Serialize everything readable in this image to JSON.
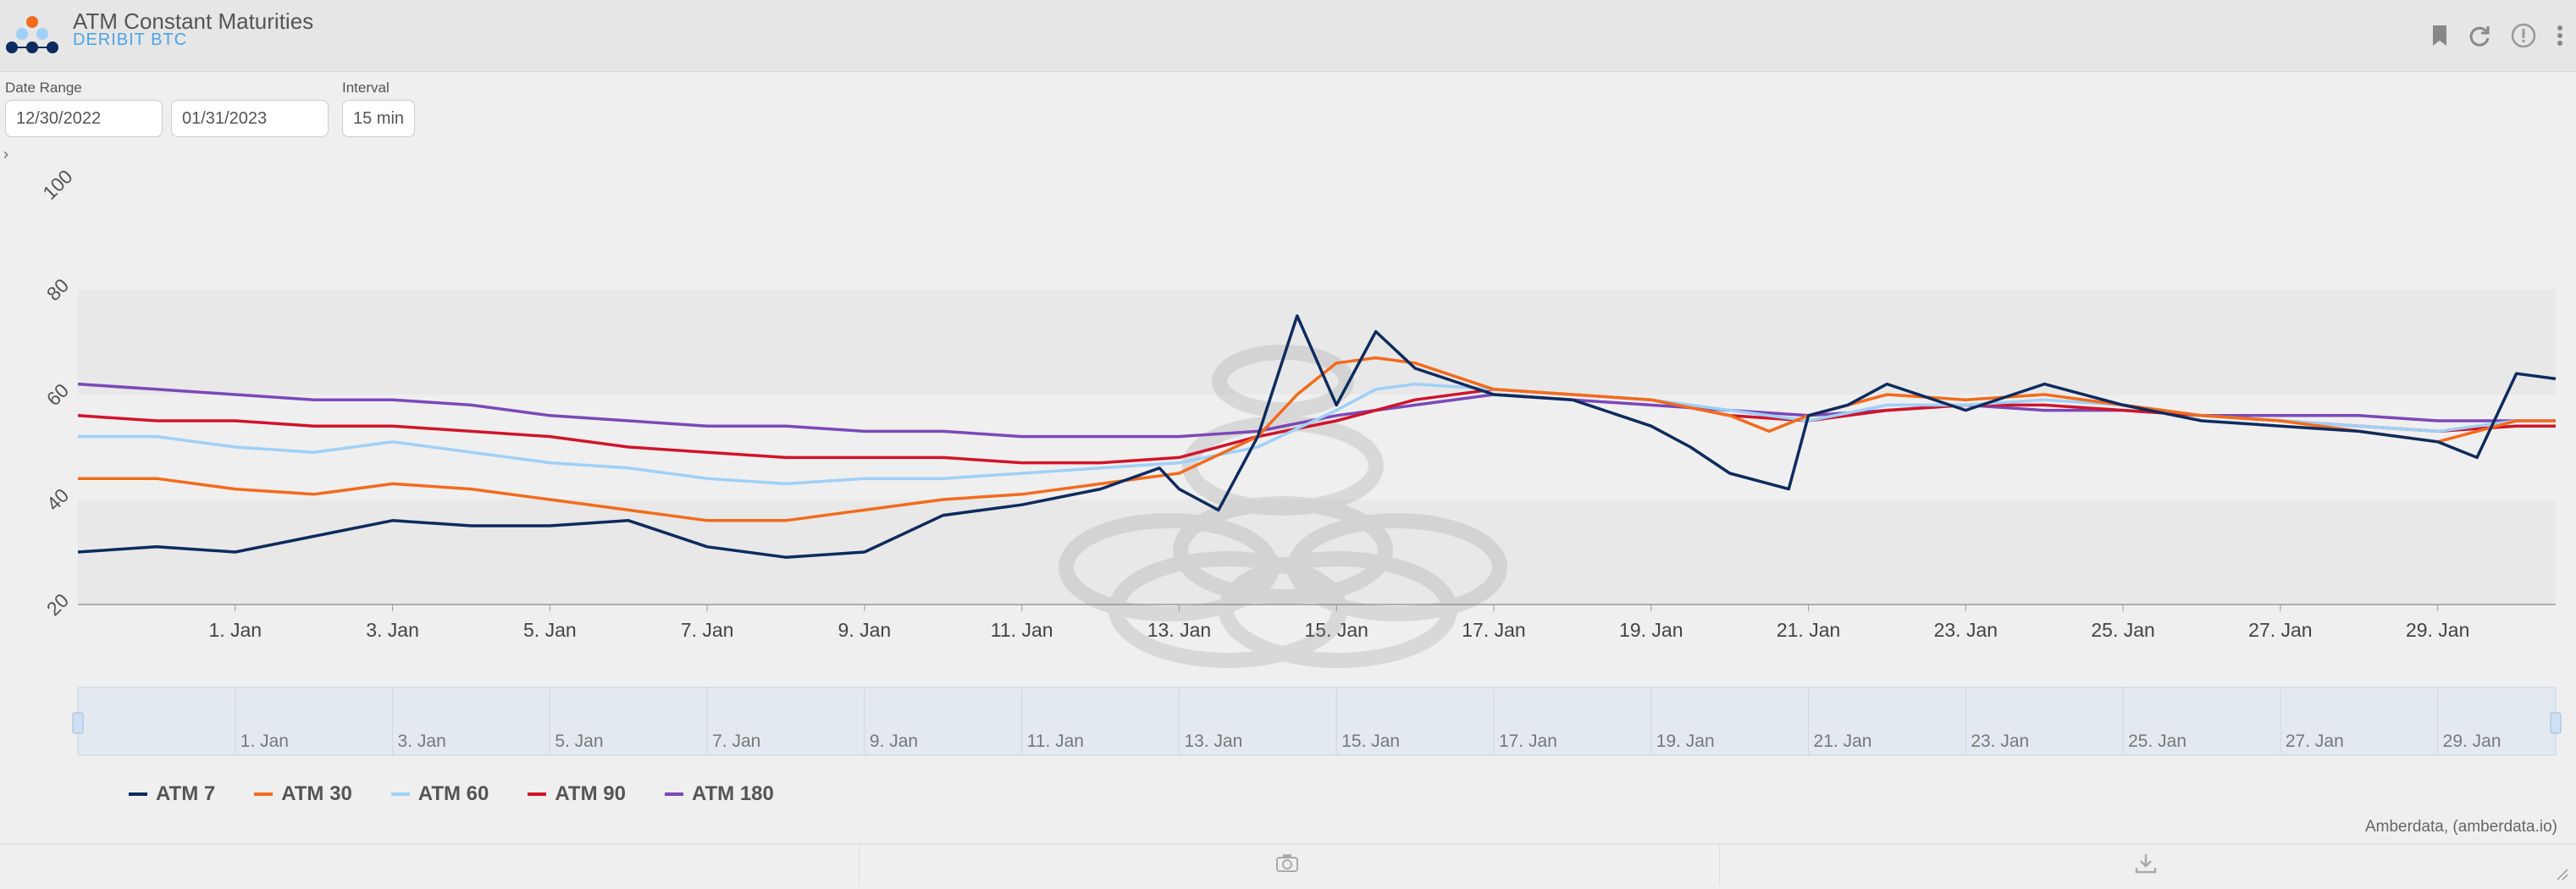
{
  "header": {
    "title": "ATM Constant Maturities",
    "subtitle": "DERIBIT BTC"
  },
  "controls": {
    "date_range_label": "Date Range",
    "start_date": "12/30/2022",
    "end_date": "01/31/2023",
    "interval_label": "Interval",
    "interval": "15 min"
  },
  "credit": "Amberdata, (amberdata.io)",
  "icons": [
    "bookmark-icon",
    "refresh-icon",
    "alert-icon",
    "more-icon",
    "camera-icon",
    "download-icon"
  ],
  "colors": {
    "atm7": "#0d2b5e",
    "atm30": "#f26b1d",
    "atm60": "#9fd0f7",
    "atm90": "#d0142b",
    "atm180": "#7b48b8"
  },
  "chart_data": {
    "type": "line",
    "title": "",
    "xlabel": "",
    "ylabel": "",
    "ylim": [
      20,
      100
    ],
    "yticks": [
      "20",
      "40",
      "60",
      "80",
      "100"
    ],
    "xlim": [
      "2022-12-30",
      "2023-01-30T12:00"
    ],
    "xticks": [
      "1. Jan",
      "3. Jan",
      "5. Jan",
      "7. Jan",
      "9. Jan",
      "11. Jan",
      "13. Jan",
      "15. Jan",
      "17. Jan",
      "19. Jan",
      "21. Jan",
      "23. Jan",
      "25. Jan",
      "27. Jan",
      "29. Jan"
    ],
    "navigator_ticks": [
      "1. Jan",
      "3. Jan",
      "5. Jan",
      "7. Jan",
      "9. Jan",
      "11. Jan",
      "13. Jan",
      "15. Jan",
      "17. Jan",
      "19. Jan",
      "21. Jan",
      "23. Jan",
      "25. Jan",
      "27. Jan",
      "29. Jan"
    ],
    "grid": "alternating horizontal bands",
    "legend": "bottom-left",
    "series": [
      {
        "name": "ATM 7",
        "color": "#0d2b5e",
        "x": [
          "2022-12-30",
          "2022-12-31",
          "2023-01-01",
          "2023-01-02",
          "2023-01-03",
          "2023-01-04",
          "2023-01-05",
          "2023-01-06",
          "2023-01-07",
          "2023-01-08",
          "2023-01-09",
          "2023-01-10",
          "2023-01-11",
          "2023-01-12",
          "2023-01-12T18:00",
          "2023-01-13",
          "2023-01-13T12:00",
          "2023-01-14",
          "2023-01-14T12:00",
          "2023-01-15",
          "2023-01-15T12:00",
          "2023-01-16",
          "2023-01-17",
          "2023-01-18",
          "2023-01-19",
          "2023-01-19T12:00",
          "2023-01-20",
          "2023-01-20T18:00",
          "2023-01-21",
          "2023-01-21T12:00",
          "2023-01-22",
          "2023-01-23",
          "2023-01-24",
          "2023-01-25",
          "2023-01-26",
          "2023-01-27",
          "2023-01-28",
          "2023-01-29",
          "2023-01-29T12:00",
          "2023-01-30",
          "2023-01-30T12:00"
        ],
        "values": [
          30,
          31,
          30,
          33,
          36,
          35,
          35,
          36,
          31,
          29,
          30,
          37,
          39,
          42,
          46,
          42,
          38,
          52,
          75,
          58,
          72,
          65,
          60,
          59,
          54,
          50,
          45,
          42,
          56,
          58,
          62,
          57,
          62,
          58,
          55,
          54,
          53,
          51,
          48,
          64,
          63
        ]
      },
      {
        "name": "ATM 30",
        "color": "#f26b1d",
        "x": [
          "2022-12-30",
          "2022-12-31",
          "2023-01-01",
          "2023-01-02",
          "2023-01-03",
          "2023-01-04",
          "2023-01-05",
          "2023-01-06",
          "2023-01-07",
          "2023-01-08",
          "2023-01-09",
          "2023-01-10",
          "2023-01-11",
          "2023-01-12",
          "2023-01-13",
          "2023-01-14",
          "2023-01-14T12:00",
          "2023-01-15",
          "2023-01-15T12:00",
          "2023-01-16",
          "2023-01-17",
          "2023-01-18",
          "2023-01-19",
          "2023-01-20",
          "2023-01-20T12:00",
          "2023-01-21",
          "2023-01-22",
          "2023-01-23",
          "2023-01-24",
          "2023-01-25",
          "2023-01-26",
          "2023-01-27",
          "2023-01-28",
          "2023-01-29",
          "2023-01-30",
          "2023-01-30T12:00"
        ],
        "values": [
          44,
          44,
          42,
          41,
          43,
          42,
          40,
          38,
          36,
          36,
          38,
          40,
          41,
          43,
          45,
          52,
          60,
          66,
          67,
          66,
          61,
          60,
          59,
          56,
          53,
          56,
          60,
          59,
          60,
          58,
          56,
          55,
          53,
          51,
          55,
          55
        ]
      },
      {
        "name": "ATM 60",
        "color": "#9fd0f7",
        "x": [
          "2022-12-30",
          "2022-12-31",
          "2023-01-01",
          "2023-01-02",
          "2023-01-03",
          "2023-01-04",
          "2023-01-05",
          "2023-01-06",
          "2023-01-07",
          "2023-01-08",
          "2023-01-09",
          "2023-01-10",
          "2023-01-11",
          "2023-01-12",
          "2023-01-13",
          "2023-01-14",
          "2023-01-15",
          "2023-01-15T12:00",
          "2023-01-16",
          "2023-01-17",
          "2023-01-18",
          "2023-01-19",
          "2023-01-20",
          "2023-01-21",
          "2023-01-22",
          "2023-01-23",
          "2023-01-24",
          "2023-01-25",
          "2023-01-26",
          "2023-01-27",
          "2023-01-28",
          "2023-01-29",
          "2023-01-30",
          "2023-01-30T12:00"
        ],
        "values": [
          52,
          52,
          50,
          49,
          51,
          49,
          47,
          46,
          44,
          43,
          44,
          44,
          45,
          46,
          47,
          50,
          57,
          61,
          62,
          61,
          60,
          59,
          57,
          55,
          58,
          58,
          59,
          58,
          56,
          55,
          54,
          53,
          55,
          55
        ]
      },
      {
        "name": "ATM 90",
        "color": "#d0142b",
        "x": [
          "2022-12-30",
          "2022-12-31",
          "2023-01-01",
          "2023-01-02",
          "2023-01-03",
          "2023-01-04",
          "2023-01-05",
          "2023-01-06",
          "2023-01-07",
          "2023-01-08",
          "2023-01-09",
          "2023-01-10",
          "2023-01-11",
          "2023-01-12",
          "2023-01-13",
          "2023-01-14",
          "2023-01-15",
          "2023-01-16",
          "2023-01-17",
          "2023-01-18",
          "2023-01-19",
          "2023-01-20",
          "2023-01-21",
          "2023-01-22",
          "2023-01-23",
          "2023-01-24",
          "2023-01-25",
          "2023-01-26",
          "2023-01-27",
          "2023-01-28",
          "2023-01-29",
          "2023-01-30",
          "2023-01-30T12:00"
        ],
        "values": [
          56,
          55,
          55,
          54,
          54,
          53,
          52,
          50,
          49,
          48,
          48,
          48,
          47,
          47,
          48,
          52,
          55,
          59,
          61,
          60,
          59,
          56,
          55,
          57,
          58,
          58,
          57,
          56,
          55,
          54,
          53,
          54,
          54
        ]
      },
      {
        "name": "ATM 180",
        "color": "#7b48b8",
        "x": [
          "2022-12-30",
          "2022-12-31",
          "2023-01-01",
          "2023-01-02",
          "2023-01-03",
          "2023-01-04",
          "2023-01-05",
          "2023-01-06",
          "2023-01-07",
          "2023-01-08",
          "2023-01-09",
          "2023-01-10",
          "2023-01-11",
          "2023-01-12",
          "2023-01-13",
          "2023-01-14",
          "2023-01-15",
          "2023-01-16",
          "2023-01-17",
          "2023-01-18",
          "2023-01-19",
          "2023-01-20",
          "2023-01-21",
          "2023-01-22",
          "2023-01-23",
          "2023-01-24",
          "2023-01-25",
          "2023-01-26",
          "2023-01-27",
          "2023-01-28",
          "2023-01-29",
          "2023-01-30",
          "2023-01-30T12:00"
        ],
        "values": [
          62,
          61,
          60,
          59,
          59,
          58,
          56,
          55,
          54,
          54,
          53,
          53,
          52,
          52,
          52,
          53,
          56,
          58,
          60,
          59,
          58,
          57,
          56,
          57,
          58,
          57,
          57,
          56,
          56,
          56,
          55,
          55,
          55
        ]
      }
    ]
  }
}
